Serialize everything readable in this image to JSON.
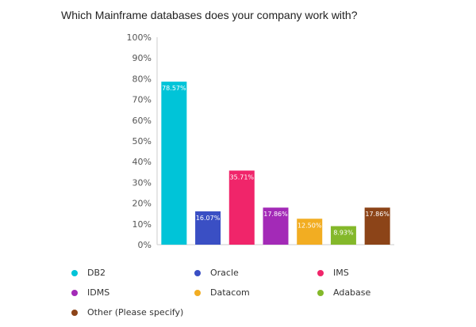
{
  "chart_data": {
    "type": "bar",
    "title": "Which Mainframe databases does your company work with?",
    "categories": [
      "DB2",
      "Oracle",
      "IMS",
      "IDMS",
      "Datacom",
      "Adabase",
      "Other (Please specify)"
    ],
    "values": [
      78.57,
      16.07,
      35.71,
      17.86,
      12.5,
      8.93,
      17.86
    ],
    "value_labels": [
      "78.57%",
      "16.07%",
      "35.71%",
      "17.86%",
      "12.50%",
      "8.93%",
      "17.86%"
    ],
    "colors": [
      "#00c4d8",
      "#3a4fc4",
      "#f0256a",
      "#a32ab7",
      "#f2ad22",
      "#84b82a",
      "#8c4418"
    ],
    "ylim": [
      0,
      100
    ],
    "yticks": [
      "0%",
      "10%",
      "20%",
      "30%",
      "40%",
      "50%",
      "60%",
      "70%",
      "80%",
      "90%",
      "100%"
    ],
    "grid": false,
    "legend_position": "bottom"
  }
}
